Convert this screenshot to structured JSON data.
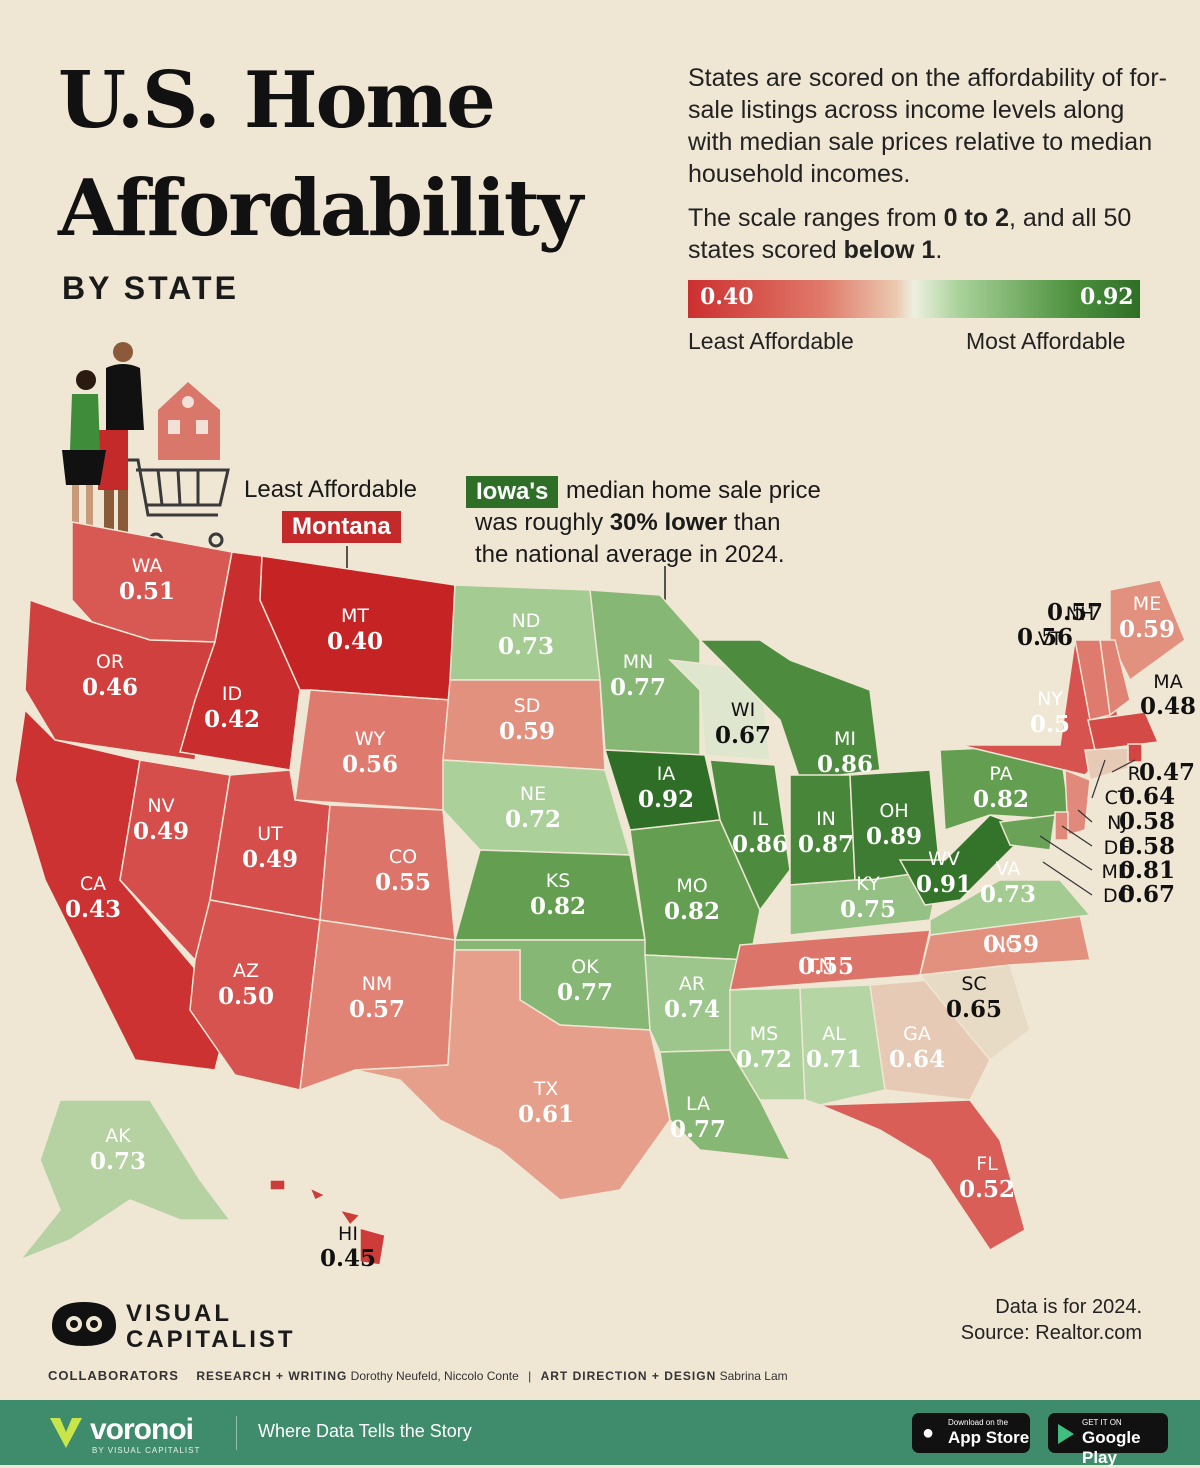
{
  "title": {
    "line1": "U.S. Home",
    "line2": "Affordability",
    "subtitle": "BY STATE"
  },
  "intro": {
    "paragraph1": "States are scored on the affordability of for-sale listings across income levels along with median sale prices relative to median household incomes.",
    "paragraph2_part1": "The scale ranges from ",
    "paragraph2_bold1": "0 to 2",
    "paragraph2_part2": ", and all 50 states scored ",
    "paragraph2_bold2": "below 1",
    "paragraph2_part3": "."
  },
  "legend": {
    "min_value": "0.40",
    "max_value": "0.92",
    "min_label": "Least Affordable",
    "max_label": "Most Affordable",
    "color_low": "#cc2f2f",
    "color_high": "#2e6e26"
  },
  "annotations": {
    "least": {
      "label": "Least Affordable",
      "state": "Montana"
    },
    "iowa": {
      "tag": "Iowa's",
      "text1": " median home sale price",
      "text2a": "was roughly ",
      "text2b": "30% lower",
      "text2c": " than",
      "text3": "the national average in 2024."
    }
  },
  "states": [
    {
      "code": "WA",
      "value": "0.51"
    },
    {
      "code": "OR",
      "value": "0.46"
    },
    {
      "code": "CA",
      "value": "0.43"
    },
    {
      "code": "ID",
      "value": "0.42"
    },
    {
      "code": "NV",
      "value": "0.49"
    },
    {
      "code": "MT",
      "value": "0.40"
    },
    {
      "code": "WY",
      "value": "0.56"
    },
    {
      "code": "UT",
      "value": "0.49"
    },
    {
      "code": "AZ",
      "value": "0.50"
    },
    {
      "code": "CO",
      "value": "0.55"
    },
    {
      "code": "NM",
      "value": "0.57"
    },
    {
      "code": "ND",
      "value": "0.73"
    },
    {
      "code": "SD",
      "value": "0.59"
    },
    {
      "code": "NE",
      "value": "0.72"
    },
    {
      "code": "KS",
      "value": "0.82"
    },
    {
      "code": "OK",
      "value": "0.77"
    },
    {
      "code": "TX",
      "value": "0.61"
    },
    {
      "code": "MN",
      "value": "0.77"
    },
    {
      "code": "IA",
      "value": "0.92"
    },
    {
      "code": "MO",
      "value": "0.82"
    },
    {
      "code": "AR",
      "value": "0.74"
    },
    {
      "code": "LA",
      "value": "0.77"
    },
    {
      "code": "WI",
      "value": "0.67"
    },
    {
      "code": "IL",
      "value": "0.86"
    },
    {
      "code": "MI",
      "value": "0.86"
    },
    {
      "code": "IN",
      "value": "0.87"
    },
    {
      "code": "OH",
      "value": "0.89"
    },
    {
      "code": "KY",
      "value": "0.75"
    },
    {
      "code": "TN",
      "value": "0.55"
    },
    {
      "code": "MS",
      "value": "0.72"
    },
    {
      "code": "AL",
      "value": "0.71"
    },
    {
      "code": "GA",
      "value": "0.64"
    },
    {
      "code": "FL",
      "value": "0.52"
    },
    {
      "code": "SC",
      "value": "0.65"
    },
    {
      "code": "NC",
      "value": "0.59"
    },
    {
      "code": "VA",
      "value": "0.73"
    },
    {
      "code": "WV",
      "value": "0.91"
    },
    {
      "code": "PA",
      "value": "0.82"
    },
    {
      "code": "NY",
      "value": "0.5"
    },
    {
      "code": "ME",
      "value": "0.59"
    },
    {
      "code": "NH",
      "value": "0.57"
    },
    {
      "code": "VT",
      "value": "0.56"
    },
    {
      "code": "MA",
      "value": "0.48"
    },
    {
      "code": "RI",
      "value": "0.47"
    },
    {
      "code": "CT",
      "value": "0.64"
    },
    {
      "code": "NJ",
      "value": "0.58"
    },
    {
      "code": "DE",
      "value": "0.58"
    },
    {
      "code": "MD",
      "value": "0.81"
    },
    {
      "code": "DC",
      "value": "0.67"
    },
    {
      "code": "AK",
      "value": "0.73"
    },
    {
      "code": "HI",
      "value": "0.45"
    }
  ],
  "footnote": {
    "line1": "Data is for 2024.",
    "line2": "Source: Realtor.com"
  },
  "brand": {
    "line1": "VISUAL",
    "line2": "CAPITALIST"
  },
  "collaborators": {
    "heading": "COLLABORATORS",
    "research_label": "RESEARCH + WRITING",
    "research_names": "Dorothy Neufeld, Niccolo Conte",
    "separator": "|",
    "design_label": "ART DIRECTION + DESIGN",
    "design_names": "Sabrina Lam"
  },
  "footer": {
    "logo_text": "voronoi",
    "logo_sub": "BY VISUAL CAPITALIST",
    "tagline": "Where Data Tells the Story",
    "appstore_small": "Download on the",
    "appstore_big": "App Store",
    "googleplay_small": "GET IT ON",
    "googleplay_big": "Google Play",
    "bg_color": "#3f8c6c"
  }
}
